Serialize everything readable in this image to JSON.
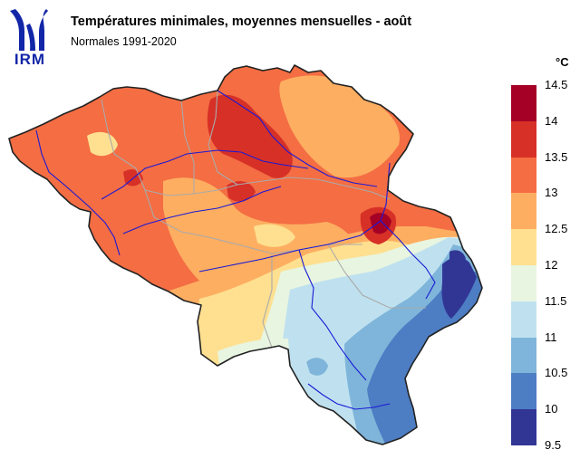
{
  "header": {
    "logo_text": "IRM",
    "title": "Températures minimales, moyennes mensuelles - août",
    "subtitle": "Normales 1991-2020"
  },
  "legend": {
    "unit": "°C",
    "ticks": [
      "14.5",
      "14",
      "13.5",
      "13",
      "12.5",
      "12",
      "11.5",
      "11",
      "10.5",
      "10",
      "9.5"
    ],
    "classes": [
      {
        "range": "14 – 14.5",
        "color": "#a50026"
      },
      {
        "range": "13.5 – 14",
        "color": "#d73027"
      },
      {
        "range": "13 – 13.5",
        "color": "#f46d43"
      },
      {
        "range": "12.5 – 13",
        "color": "#fdae61"
      },
      {
        "range": "12 – 12.5",
        "color": "#fee090"
      },
      {
        "range": "11.5 – 12",
        "color": "#e8f5e0"
      },
      {
        "range": "11 – 11.5",
        "color": "#bfe1ef"
      },
      {
        "range": "10.5 – 11",
        "color": "#7fb5da"
      },
      {
        "range": "10 – 10.5",
        "color": "#4d7dc3"
      },
      {
        "range": "9.5 – 10",
        "color": "#313695"
      }
    ]
  },
  "colors": {
    "brand": "#1226a8",
    "border": "#222222",
    "rivers": "#1a1ad6",
    "provinces": "#aaaaaa"
  }
}
